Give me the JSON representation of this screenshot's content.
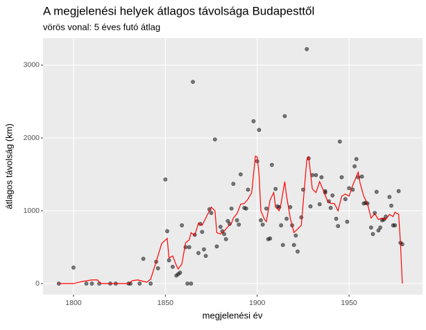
{
  "chart_data": {
    "type": "scatter",
    "title": "A megjelenési helyek átlagos távolsága Budapesttől",
    "subtitle": "vörös vonal: 5 éves futó átlag",
    "x_label": "megjelenési év",
    "y_label": "átlagos távolság (km)",
    "xlim": [
      1783.4,
      1990
    ],
    "ylim": [
      -152,
      3371
    ],
    "xticks": [
      1800,
      1850,
      1900,
      1950
    ],
    "yticks": [
      0,
      1000,
      2000,
      3000
    ],
    "grid": true,
    "points": {
      "color": "#000000",
      "x": [
        1792,
        1800,
        1807,
        1810,
        1814,
        1820,
        1823,
        1830,
        1831,
        1836,
        1838,
        1842,
        1845,
        1846,
        1850,
        1851,
        1852,
        1854,
        1856,
        1857,
        1858,
        1859,
        1861,
        1862,
        1863,
        1864,
        1865,
        1866,
        1868,
        1869,
        1870,
        1871,
        1872,
        1874,
        1875,
        1877,
        1878,
        1880,
        1881,
        1882,
        1883,
        1884,
        1885,
        1886,
        1887,
        1889,
        1890,
        1891,
        1893,
        1894,
        1895,
        1898,
        1900,
        1901,
        1902,
        1903,
        1905,
        1906,
        1907,
        1908,
        1910,
        1911,
        1912,
        1913,
        1914,
        1915,
        1916,
        1918,
        1919,
        1920,
        1921,
        1922,
        1924,
        1925,
        1927,
        1928,
        1929,
        1930,
        1932,
        1934,
        1935,
        1937,
        1937,
        1939,
        1940,
        1941,
        1943,
        1944,
        1945,
        1946,
        1948,
        1949,
        1950,
        1952,
        1953,
        1954,
        1955,
        1957,
        1958,
        1959,
        1960,
        1962,
        1963,
        1964,
        1965,
        1966,
        1967,
        1968,
        1969,
        1970,
        1972,
        1973,
        1974,
        1975,
        1977,
        1978,
        1979
      ],
      "y": [
        0,
        220,
        0,
        0,
        0,
        0,
        0,
        0,
        0,
        0,
        340,
        0,
        300,
        210,
        1430,
        720,
        320,
        230,
        110,
        130,
        150,
        800,
        500,
        0,
        500,
        0,
        2770,
        670,
        420,
        820,
        710,
        470,
        380,
        1020,
        970,
        1980,
        510,
        780,
        720,
        680,
        610,
        860,
        820,
        1030,
        1370,
        870,
        810,
        1500,
        1040,
        1030,
        1290,
        2230,
        1680,
        2110,
        870,
        810,
        1030,
        610,
        620,
        1630,
        1300,
        1060,
        1050,
        800,
        530,
        2300,
        890,
        1050,
        800,
        530,
        660,
        440,
        910,
        1290,
        3220,
        1720,
        1060,
        1490,
        1490,
        1090,
        1460,
        1250,
        1270,
        1130,
        1040,
        1210,
        890,
        790,
        1950,
        1460,
        1160,
        850,
        1310,
        1290,
        1610,
        1710,
        1460,
        1470,
        1100,
        1110,
        1100,
        770,
        680,
        970,
        1260,
        730,
        770,
        870,
        880,
        920,
        1190,
        1070,
        800,
        800,
        1270,
        560,
        540
      ]
    },
    "line": {
      "color": "#ff0000",
      "x": [
        1792,
        1800,
        1805,
        1810,
        1813,
        1815,
        1830,
        1832,
        1835,
        1838,
        1840,
        1842,
        1845,
        1848,
        1851,
        1852,
        1854,
        1856,
        1857,
        1859,
        1861,
        1863,
        1864,
        1866,
        1868,
        1870,
        1872,
        1874,
        1875,
        1877,
        1878,
        1880,
        1882,
        1884,
        1886,
        1887,
        1889,
        1891,
        1893,
        1895,
        1897,
        1899,
        1900,
        1901,
        1902,
        1904,
        1905,
        1907,
        1909,
        1910,
        1912,
        1913,
        1915,
        1916,
        1918,
        1920,
        1922,
        1924,
        1926,
        1927,
        1928,
        1930,
        1932,
        1934,
        1936,
        1938,
        1940,
        1942,
        1944,
        1946,
        1948,
        1950,
        1952,
        1954,
        1955,
        1956,
        1958,
        1960,
        1962,
        1964,
        1966,
        1968,
        1970,
        1972,
        1974,
        1975,
        1977,
        1978,
        1979
      ],
      "y": [
        0,
        0,
        30,
        50,
        50,
        0,
        0,
        40,
        50,
        30,
        20,
        60,
        300,
        550,
        620,
        350,
        380,
        250,
        200,
        270,
        560,
        600,
        700,
        660,
        830,
        800,
        900,
        1000,
        1050,
        1000,
        700,
        680,
        720,
        780,
        830,
        900,
        960,
        1090,
        1100,
        1160,
        1250,
        1750,
        1740,
        1500,
        1000,
        880,
        850,
        1150,
        1250,
        1050,
        1000,
        1100,
        1400,
        1200,
        900,
        700,
        750,
        800,
        1400,
        1700,
        1740,
        1300,
        1250,
        1400,
        1280,
        1150,
        1100,
        1100,
        1000,
        1200,
        1230,
        1200,
        1350,
        1470,
        1530,
        1380,
        1200,
        1100,
        900,
        960,
        880,
        900,
        880,
        950,
        920,
        980,
        950,
        550,
        0
      ]
    }
  }
}
